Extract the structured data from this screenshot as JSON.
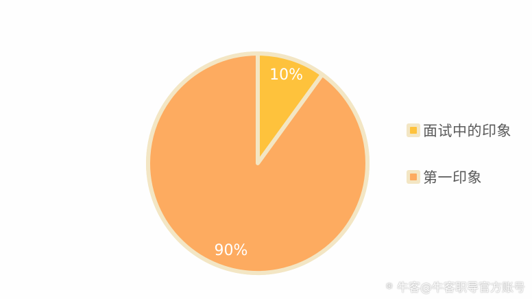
{
  "chart_data": {
    "type": "pie",
    "categories": [
      "面试中的印象",
      "第一印象"
    ],
    "values": [
      10,
      90
    ],
    "value_labels": [
      "10%",
      "90%"
    ],
    "colors": [
      "#fec23c",
      "#fdab60"
    ],
    "border_color": "#f3e6c4",
    "legend_position": "right"
  },
  "legend": {
    "items": [
      {
        "label": "面试中的印象",
        "color": "#fec23c"
      },
      {
        "label": "第一印象",
        "color": "#fdab60"
      }
    ]
  },
  "watermark": {
    "icon": "brand-logo-icon",
    "text": "牛客@牛客职导官方账号"
  }
}
